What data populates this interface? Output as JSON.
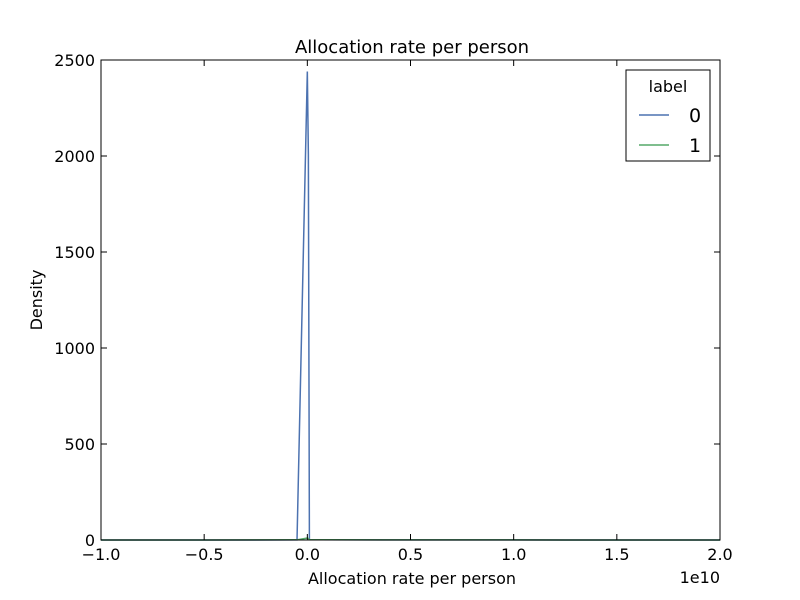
{
  "chart_data": {
    "type": "line",
    "title": "Allocation rate per person",
    "xlabel": "Allocation rate per person",
    "ylabel": "Density",
    "x_offset_label": "1e10",
    "xlim": [
      -1.0,
      2.0
    ],
    "ylim": [
      0,
      2500
    ],
    "x_ticks": [
      -1.0,
      -0.5,
      0.0,
      0.5,
      1.0,
      1.5,
      2.0
    ],
    "x_tick_labels": [
      "−1.0",
      "−0.5",
      "0.0",
      "0.5",
      "1.0",
      "1.5",
      "2.0"
    ],
    "y_ticks": [
      0,
      500,
      1000,
      1500,
      2000,
      2500
    ],
    "y_tick_labels": [
      "0",
      "500",
      "1000",
      "1500",
      "2000",
      "2500"
    ],
    "grid": false,
    "legend": {
      "title": "label",
      "placement": "top-right"
    },
    "series": [
      {
        "name": "0",
        "color": "#4c72b0",
        "points": [
          [
            -1.0,
            0
          ],
          [
            -0.5,
            0
          ],
          [
            -0.05,
            0.5
          ],
          [
            0.0,
            2440
          ],
          [
            0.005,
            2010
          ],
          [
            0.01,
            2
          ],
          [
            0.05,
            1
          ],
          [
            0.5,
            0.5
          ],
          [
            1.25,
            0.3
          ],
          [
            1.6,
            0
          ],
          [
            2.0,
            0
          ]
        ]
      },
      {
        "name": "1",
        "color": "#55a868",
        "points": [
          [
            -1.0,
            0
          ],
          [
            -0.5,
            0
          ],
          [
            -0.05,
            1
          ],
          [
            0.0,
            10
          ],
          [
            0.005,
            8
          ],
          [
            0.01,
            2
          ],
          [
            0.1,
            1
          ],
          [
            0.5,
            0.5
          ],
          [
            1.25,
            0.3
          ],
          [
            1.6,
            0
          ],
          [
            2.0,
            0
          ]
        ]
      }
    ]
  }
}
